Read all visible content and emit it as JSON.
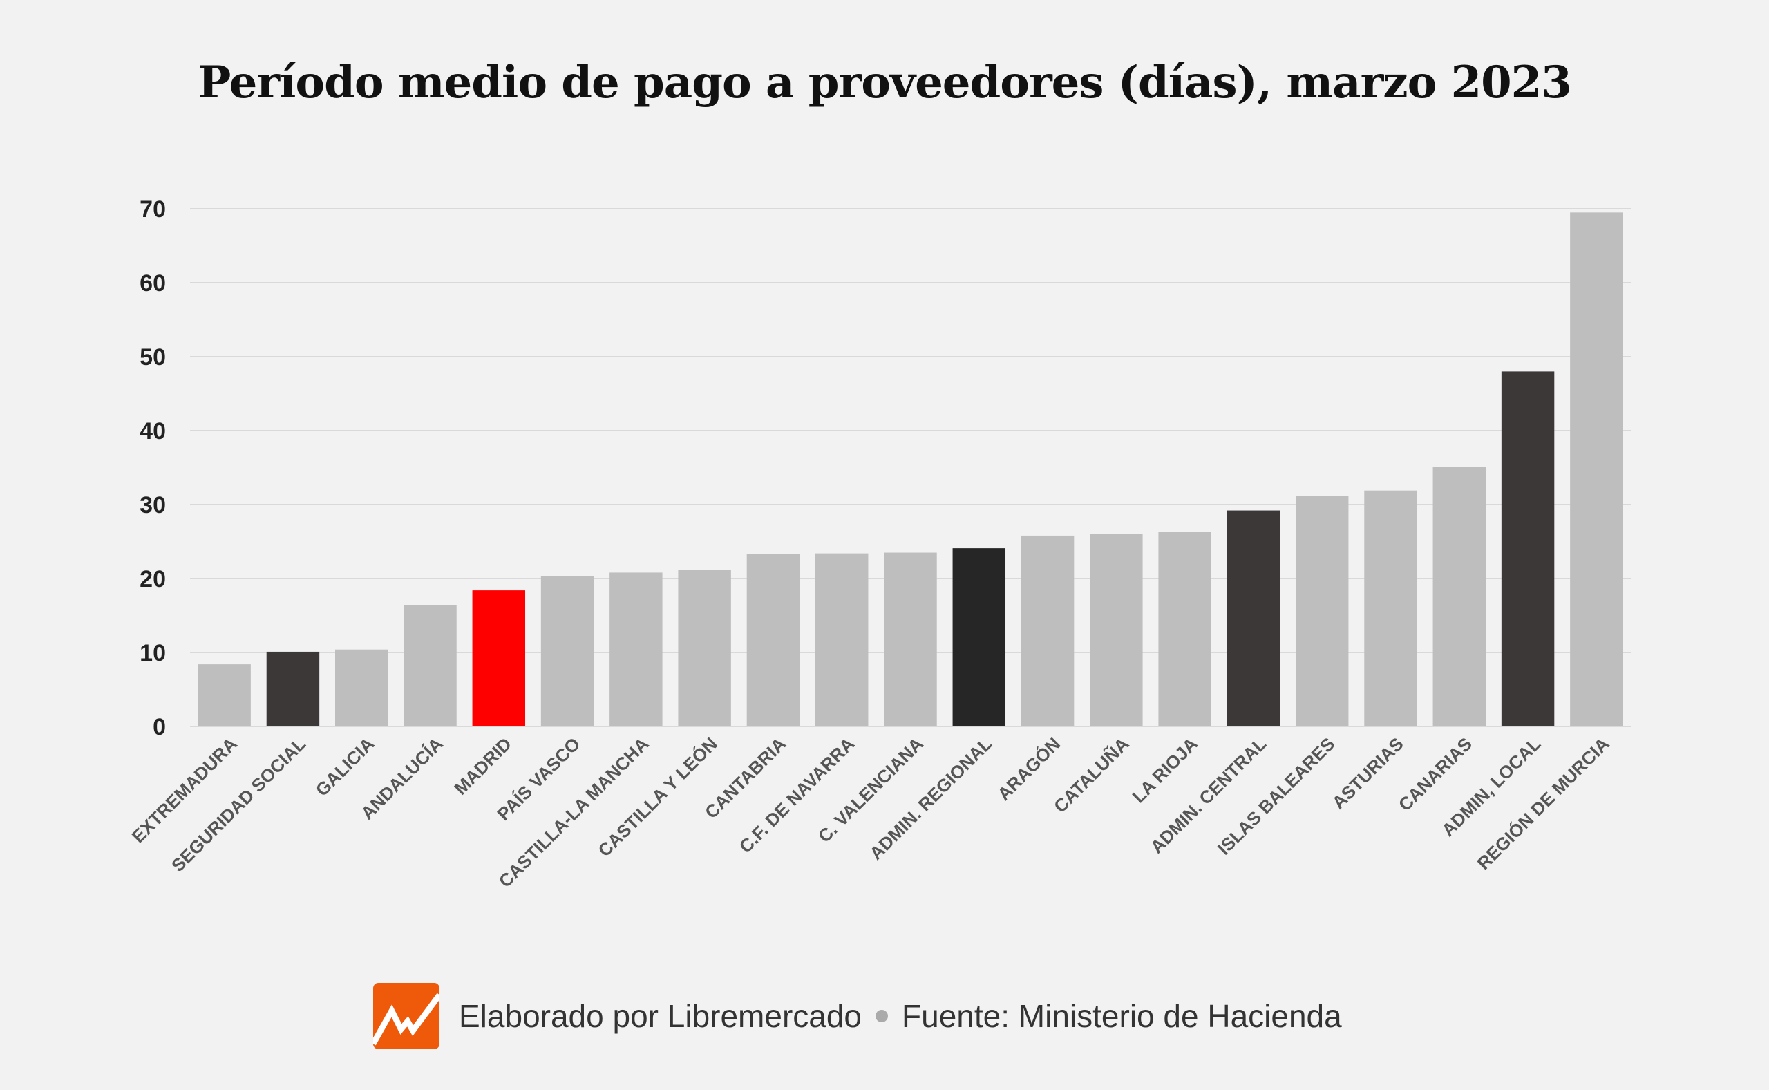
{
  "chart_data": {
    "type": "bar",
    "title": "Período medio de pago a proveedores (días), marzo 2023",
    "xlabel": "",
    "ylabel": "",
    "ylim": [
      0,
      70
    ],
    "yticks": [
      0,
      10,
      20,
      30,
      40,
      50,
      60,
      70
    ],
    "grid": true,
    "categories": [
      "EXTREMADURA",
      "SEGURIDAD SOCIAL",
      "GALICIA",
      "ANDALUCÍA",
      "MADRID",
      "PAÍS VASCO",
      "CASTILLA-LA MANCHA",
      "CASTILLA Y LEÓN",
      "CANTABRIA",
      "C.F. DE NAVARRA",
      "C. VALENCIANA",
      "ADMIN. REGIONAL",
      "ARAGÓN",
      "CATALUÑA",
      "LA RIOJA",
      "ADMIN. CENTRAL",
      "ISLAS BALEARES",
      "ASTURIAS",
      "CANARIAS",
      "ADMIN, LOCAL",
      "REGIÓN DE MURCIA"
    ],
    "values": [
      8.4,
      10.1,
      10.4,
      16.4,
      18.4,
      20.3,
      20.8,
      21.2,
      23.3,
      23.4,
      23.5,
      24.1,
      25.8,
      26.0,
      26.3,
      29.2,
      31.2,
      31.9,
      35.1,
      48.0,
      69.5
    ],
    "colors": [
      "#bebebe",
      "#3c3838",
      "#bebebe",
      "#bebebe",
      "#ff0000",
      "#bebebe",
      "#bebebe",
      "#bebebe",
      "#bebebe",
      "#bebebe",
      "#bebebe",
      "#262626",
      "#bebebe",
      "#bebebe",
      "#bebebe",
      "#3c3838",
      "#bebebe",
      "#bebebe",
      "#bebebe",
      "#3c3838",
      "#bebebe"
    ]
  },
  "colors": {
    "background": "#f2f2f2",
    "gridline": "#d9d9d9",
    "highlight": "#ff0000",
    "logo": "#ee5a0a"
  },
  "footer": {
    "credit": "Elaborado por Libremercado",
    "source": "Fuente: Ministerio de Hacienda"
  }
}
